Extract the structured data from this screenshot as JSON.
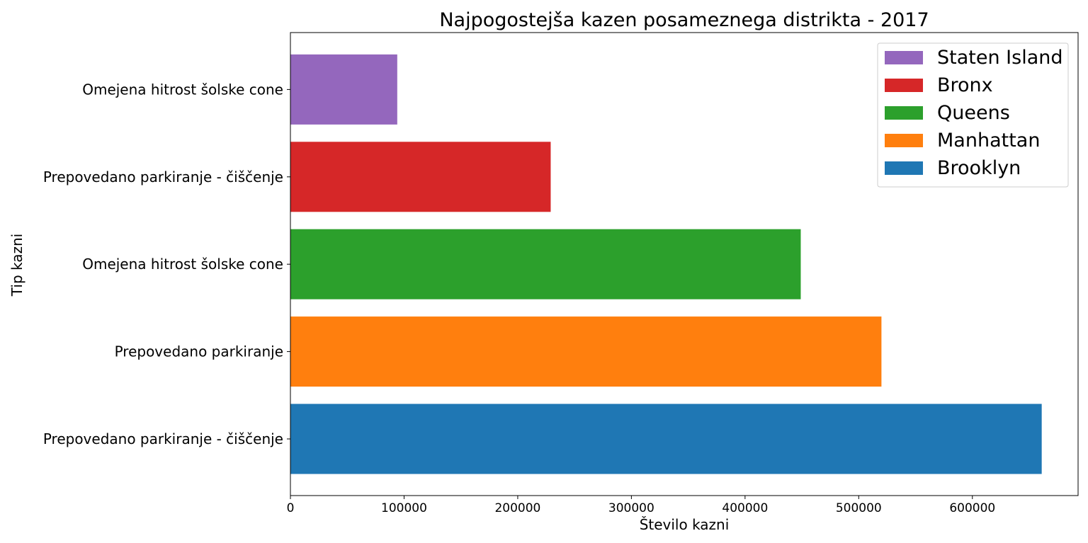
{
  "chart_data": {
    "type": "bar",
    "orientation": "horizontal",
    "title": "Najpogostejša kazen posameznega distrikta - 2017",
    "xlabel": "Število kazni",
    "ylabel": "Tip kazni",
    "xlim": [
      0,
      693000
    ],
    "xticks": [
      "0",
      "100000",
      "200000",
      "300000",
      "400000",
      "500000",
      "600000"
    ],
    "grid": false,
    "legend_position": "top-right",
    "bars": [
      {
        "category": "Prepovedano parkiranje - čiščenje ",
        "series": "Brooklyn",
        "value": 661000,
        "color": "#1f77b4"
      },
      {
        "category": "Prepovedano parkiranje",
        "series": "Manhattan",
        "value": 520000,
        "color": "#ff7f0e"
      },
      {
        "category": "Omejena hitrost šolske cone",
        "series": "Queens",
        "value": 449000,
        "color": "#2ca02c"
      },
      {
        "category": "Prepovedano parkiranje - čiščenje",
        "series": "Bronx",
        "value": 229000,
        "color": "#d62728"
      },
      {
        "category": "Omejena hitrost šolske cone ",
        "series": "Staten Island",
        "value": 94000,
        "color": "#9467bd"
      }
    ],
    "legend": [
      {
        "name": "Staten Island",
        "color": "#9467bd"
      },
      {
        "name": "Bronx",
        "color": "#d62728"
      },
      {
        "name": "Queens",
        "color": "#2ca02c"
      },
      {
        "name": "Manhattan",
        "color": "#ff7f0e"
      },
      {
        "name": "Brooklyn",
        "color": "#1f77b4"
      }
    ]
  }
}
